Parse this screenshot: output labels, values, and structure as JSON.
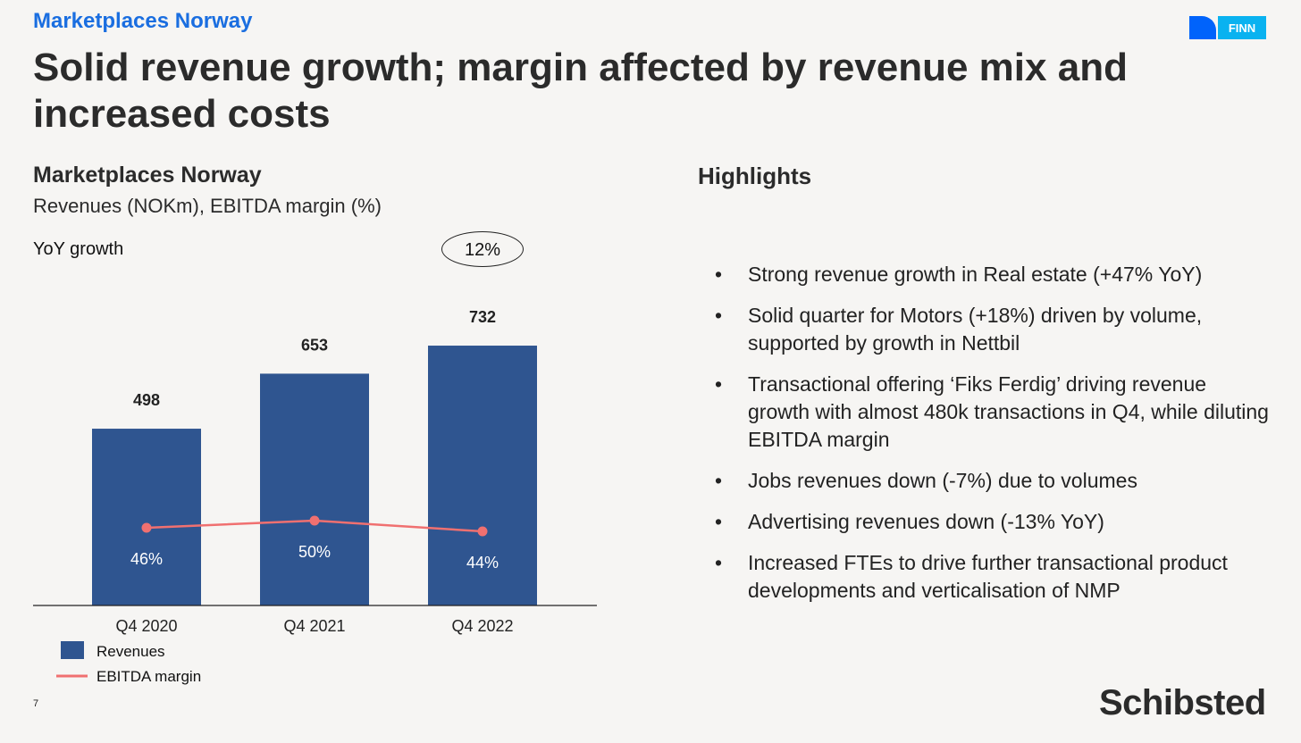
{
  "header": {
    "section": "Marketplaces Norway",
    "title": "Solid revenue growth; margin affected by revenue mix and increased costs"
  },
  "logos": {
    "finn": "FINN",
    "schibsted": "Schibsted"
  },
  "chart_panel": {
    "title": "Marketplaces Norway",
    "subtitle": "Revenues (NOKm), EBITDA margin (%)",
    "yoy_label": "YoY growth",
    "yoy_value": "12%"
  },
  "highlights": {
    "title": "Highlights",
    "items": [
      "Strong revenue growth in Real estate (+47% YoY)",
      "Solid quarter for Motors (+18%) driven by volume, supported by growth in Nettbil",
      "Transactional offering ‘Fiks Ferdig’ driving revenue growth with almost 480k transactions in Q4, while diluting EBITDA margin",
      "Jobs revenues down (-7%) due to volumes",
      "Advertising revenues down (-13% YoY)",
      "Increased FTEs to drive further transactional product developments and verticalisation of NMP"
    ]
  },
  "page_number": "7",
  "chart_data": {
    "type": "bar",
    "categories": [
      "Q4 2020",
      "Q4 2021",
      "Q4 2022"
    ],
    "series": [
      {
        "name": "Revenues",
        "type": "bar",
        "values": [
          498,
          653,
          732
        ],
        "labels": [
          "498",
          "653",
          "732"
        ],
        "color": "#2f5590"
      },
      {
        "name": "EBITDA margin",
        "type": "line",
        "values": [
          46,
          50,
          44
        ],
        "labels": [
          "46%",
          "50%",
          "44%"
        ],
        "color": "#f07070"
      }
    ],
    "ylim": [
      0,
      800
    ],
    "legend": "bottom-left"
  }
}
